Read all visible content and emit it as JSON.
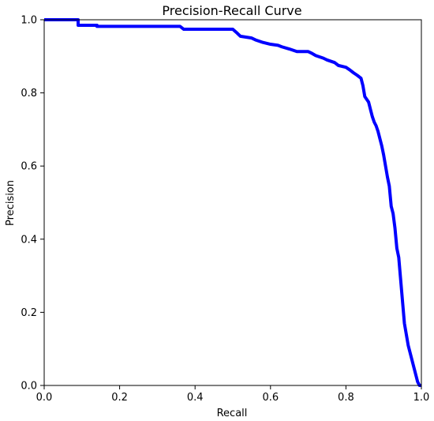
{
  "chart_data": {
    "type": "line",
    "title": "Precision-Recall Curve",
    "xlabel": "Recall",
    "ylabel": "Precision",
    "xlim": [
      0.0,
      1.0
    ],
    "ylim": [
      0.0,
      1.0
    ],
    "xticks": [
      "0.0",
      "0.2",
      "0.4",
      "0.6",
      "0.8",
      "1.0"
    ],
    "yticks": [
      "0.0",
      "0.2",
      "0.4",
      "0.6",
      "0.8",
      "1.0"
    ],
    "grid": false,
    "series": [
      {
        "color": "#0000ff",
        "x": [
          0.0,
          0.09,
          0.09,
          0.14,
          0.14,
          0.36,
          0.37,
          0.5,
          0.51,
          0.52,
          0.55,
          0.56,
          0.58,
          0.6,
          0.62,
          0.63,
          0.65,
          0.67,
          0.7,
          0.71,
          0.72,
          0.74,
          0.75,
          0.77,
          0.78,
          0.8,
          0.81,
          0.82,
          0.83,
          0.84,
          0.845,
          0.85,
          0.86,
          0.865,
          0.87,
          0.875,
          0.88,
          0.885,
          0.89,
          0.895,
          0.9,
          0.905,
          0.91,
          0.915,
          0.92,
          0.925,
          0.93,
          0.935,
          0.94,
          0.945,
          0.95,
          0.955,
          0.96,
          0.965,
          0.97,
          0.975,
          0.98,
          0.985,
          0.99,
          0.995,
          1.0
        ],
        "y": [
          1.0,
          1.0,
          0.985,
          0.985,
          0.982,
          0.982,
          0.974,
          0.974,
          0.965,
          0.955,
          0.95,
          0.945,
          0.938,
          0.933,
          0.93,
          0.926,
          0.92,
          0.913,
          0.913,
          0.908,
          0.902,
          0.895,
          0.89,
          0.883,
          0.875,
          0.87,
          0.863,
          0.855,
          0.848,
          0.84,
          0.82,
          0.79,
          0.775,
          0.755,
          0.735,
          0.72,
          0.71,
          0.695,
          0.675,
          0.655,
          0.63,
          0.6,
          0.57,
          0.545,
          0.49,
          0.47,
          0.43,
          0.375,
          0.35,
          0.29,
          0.23,
          0.17,
          0.14,
          0.11,
          0.09,
          0.07,
          0.05,
          0.03,
          0.01,
          0.0,
          0.0
        ]
      }
    ]
  }
}
